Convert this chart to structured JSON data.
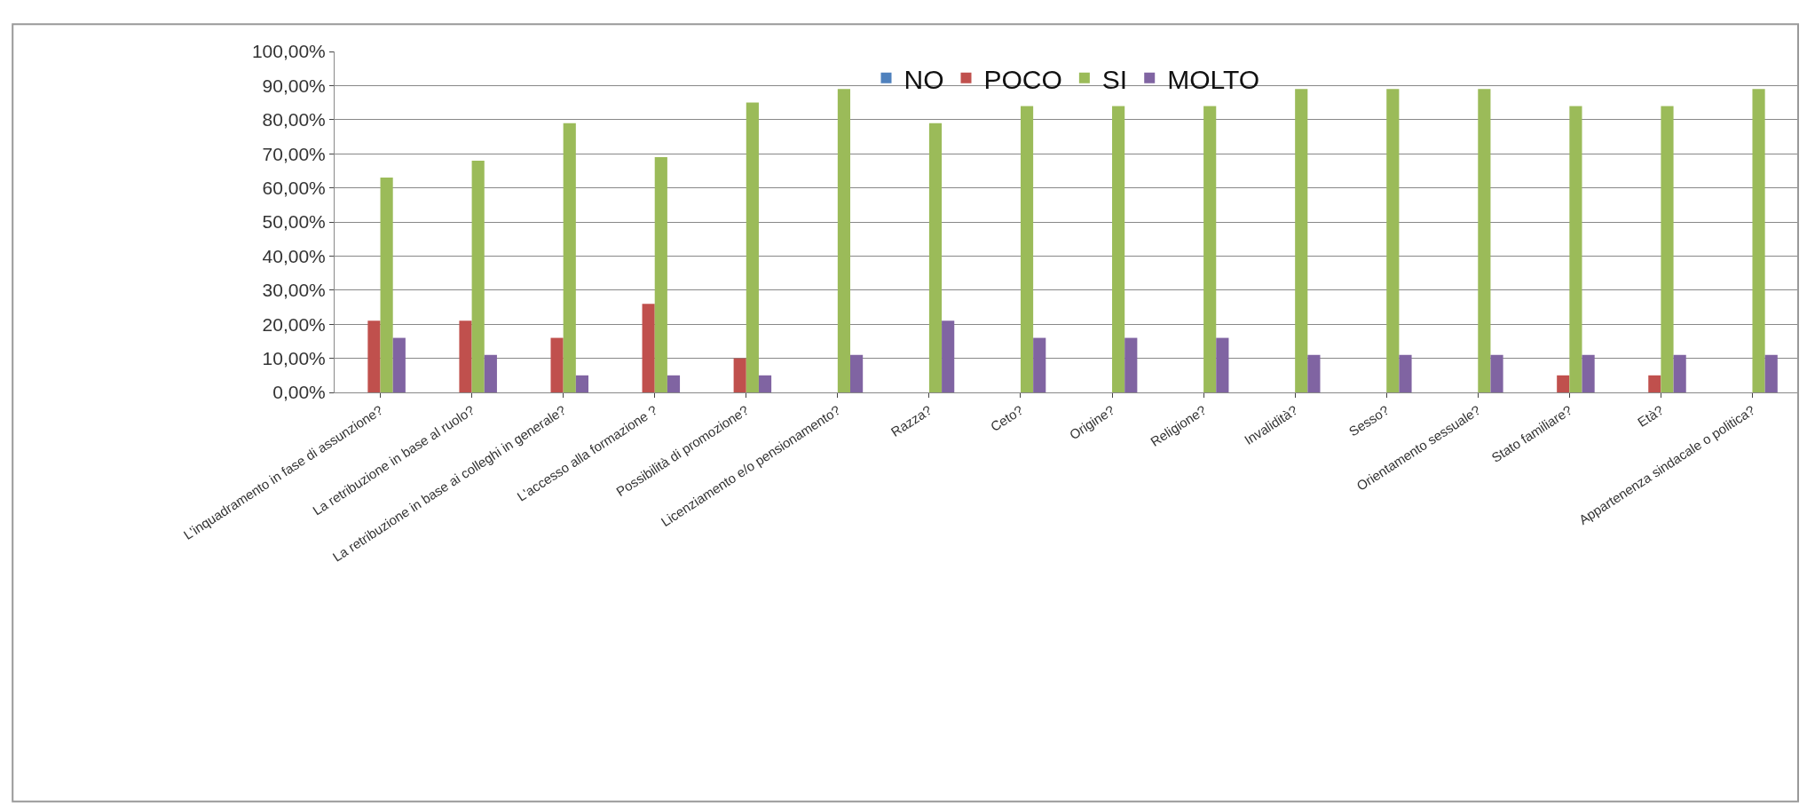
{
  "chart_data": {
    "type": "bar",
    "categories": [
      "L'inquadramento in fase di assunzione?",
      "La retribuzione in base al ruolo?",
      "La retribuzione in base ai colleghi in generale?",
      "L'accesso alla formazione ?",
      "Possibilità di promozione?",
      "Licenziamento e/o pensionamento?",
      "Razza?",
      "Ceto?",
      "Origine?",
      "Religione?",
      "Invalidità?",
      "Sesso?",
      "Orientamento sessuale?",
      "Stato familiare?",
      "Età?",
      "Appartenenza sindacale o politica?"
    ],
    "series": [
      {
        "name": "NO",
        "color": "#4f81bd",
        "values": [
          0,
          0,
          0,
          0,
          0,
          0,
          0,
          0,
          0,
          0,
          0,
          0,
          0,
          0,
          0,
          0
        ]
      },
      {
        "name": "POCO",
        "color": "#c0504d",
        "values": [
          21,
          21,
          16,
          26,
          10,
          0,
          0,
          0,
          0,
          0,
          0,
          0,
          0,
          5,
          5,
          0
        ]
      },
      {
        "name": "SI",
        "color": "#9bbb59",
        "values": [
          63,
          68,
          79,
          69,
          85,
          89,
          79,
          84,
          84,
          84,
          89,
          89,
          89,
          84,
          84,
          89
        ]
      },
      {
        "name": "MOLTO",
        "color": "#8064a2",
        "values": [
          16,
          11,
          5,
          5,
          5,
          11,
          21,
          16,
          16,
          16,
          11,
          11,
          11,
          11,
          11,
          11
        ]
      }
    ],
    "ylim": [
      0,
      100
    ],
    "yticks": [
      {
        "value": 0,
        "label": "0,00%"
      },
      {
        "value": 10,
        "label": "10,00%"
      },
      {
        "value": 20,
        "label": "20,00%"
      },
      {
        "value": 30,
        "label": "30,00%"
      },
      {
        "value": 40,
        "label": "40,00%"
      },
      {
        "value": 50,
        "label": "50,00%"
      },
      {
        "value": 60,
        "label": "60,00%"
      },
      {
        "value": 70,
        "label": "70,00%"
      },
      {
        "value": 80,
        "label": "80,00%"
      },
      {
        "value": 90,
        "label": "90,00%"
      },
      {
        "value": 100,
        "label": "100,00%"
      }
    ],
    "grid": "y",
    "legend": "top"
  }
}
